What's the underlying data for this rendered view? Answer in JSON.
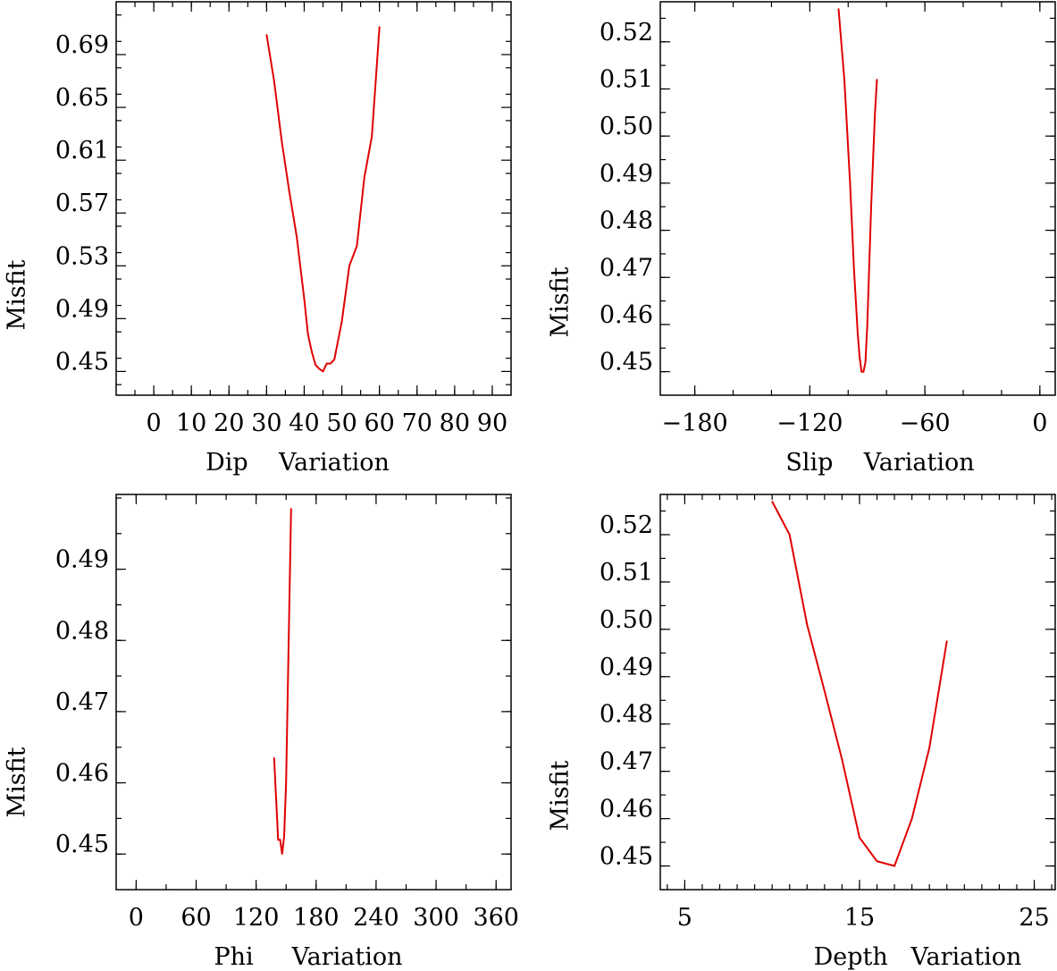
{
  "chart_data": [
    {
      "type": "line",
      "xlabel": "Dip    Variation",
      "ylabel": "Misfit",
      "xlim": [
        -10,
        95
      ],
      "ylim": [
        0.432,
        0.73
      ],
      "xticks": [
        0,
        10,
        20,
        30,
        40,
        50,
        60,
        70,
        80,
        90
      ],
      "xtick_labels": [
        "0",
        "10",
        "20",
        "30",
        "40",
        "50",
        "60",
        "70",
        "80",
        "90"
      ],
      "xminor": 5,
      "yticks": [
        0.45,
        0.49,
        0.53,
        0.57,
        0.61,
        0.65,
        0.69
      ],
      "ytick_labels": [
        "0.45",
        "0.49",
        "0.53",
        "0.57",
        "0.61",
        "0.65",
        "0.69"
      ],
      "yminor": 0.02,
      "x": [
        30,
        32,
        34,
        36,
        38,
        40,
        41,
        42,
        43,
        44,
        45,
        46,
        47,
        48,
        50,
        52,
        54,
        56,
        58,
        60
      ],
      "values": [
        0.705,
        0.67,
        0.625,
        0.587,
        0.552,
        0.505,
        0.478,
        0.465,
        0.455,
        0.452,
        0.45,
        0.456,
        0.456,
        0.459,
        0.488,
        0.53,
        0.545,
        0.597,
        0.628,
        0.711
      ]
    },
    {
      "type": "line",
      "xlabel": "Slip    Variation",
      "ylabel": "Misfit",
      "xlim": [
        -198,
        8
      ],
      "ylim": [
        0.445,
        0.5285
      ],
      "xticks": [
        -180,
        -120,
        -60,
        0
      ],
      "xtick_labels": [
        "−180",
        "−120",
        "−60",
        "0"
      ],
      "xminor": 20,
      "yticks": [
        0.45,
        0.46,
        0.47,
        0.48,
        0.49,
        0.5,
        0.51,
        0.52
      ],
      "ytick_labels": [
        "0.45",
        "0.46",
        "0.47",
        "0.48",
        "0.49",
        "0.50",
        "0.51",
        "0.52"
      ],
      "yminor": 0.005,
      "x": [
        -105,
        -102,
        -99,
        -97,
        -95,
        -94,
        -93,
        -92,
        -91,
        -90,
        -88,
        -86,
        -85
      ],
      "values": [
        0.527,
        0.512,
        0.49,
        0.472,
        0.458,
        0.453,
        0.45,
        0.45,
        0.452,
        0.46,
        0.485,
        0.505,
        0.512
      ]
    },
    {
      "type": "line",
      "xlabel": "Phi     Variation",
      "ylabel": "Misfit",
      "xlim": [
        -20,
        375
      ],
      "ylim": [
        0.445,
        0.5005
      ],
      "xticks": [
        0,
        60,
        120,
        180,
        240,
        300,
        360
      ],
      "xtick_labels": [
        "0",
        "60",
        "120",
        "180",
        "240",
        "300",
        "360"
      ],
      "xminor": 30,
      "yticks": [
        0.45,
        0.46,
        0.47,
        0.48,
        0.49
      ],
      "ytick_labels": [
        "0.45",
        "0.46",
        "0.47",
        "0.48",
        "0.49"
      ],
      "yminor": 0.005,
      "x": [
        138,
        142,
        144,
        146,
        148,
        150,
        155
      ],
      "values": [
        0.4635,
        0.452,
        0.452,
        0.45,
        0.4525,
        0.46,
        0.4985
      ],
      "ann_xmin": [
        0,
        60,
        180
      ]
    },
    {
      "type": "line",
      "xlabel": "Depth   Variation",
      "ylabel": "Misfit",
      "xlim": [
        3.6,
        26.2
      ],
      "ylim": [
        0.445,
        0.5285
      ],
      "xticks": [
        5,
        15,
        25
      ],
      "xtick_labels": [
        "5",
        "15",
        "25"
      ],
      "xminor": 1,
      "yticks": [
        0.45,
        0.46,
        0.47,
        0.48,
        0.49,
        0.5,
        0.51,
        0.52
      ],
      "ytick_labels": [
        "0.45",
        "0.46",
        "0.47",
        "0.48",
        "0.49",
        "0.50",
        "0.51",
        "0.52"
      ],
      "yminor": 0.005,
      "x": [
        10,
        11,
        12,
        13,
        14,
        15,
        16,
        17,
        18,
        19,
        20
      ],
      "values": [
        0.527,
        0.52,
        0.501,
        0.487,
        0.4725,
        0.456,
        0.451,
        0.45,
        0.46,
        0.475,
        0.4975
      ]
    }
  ]
}
